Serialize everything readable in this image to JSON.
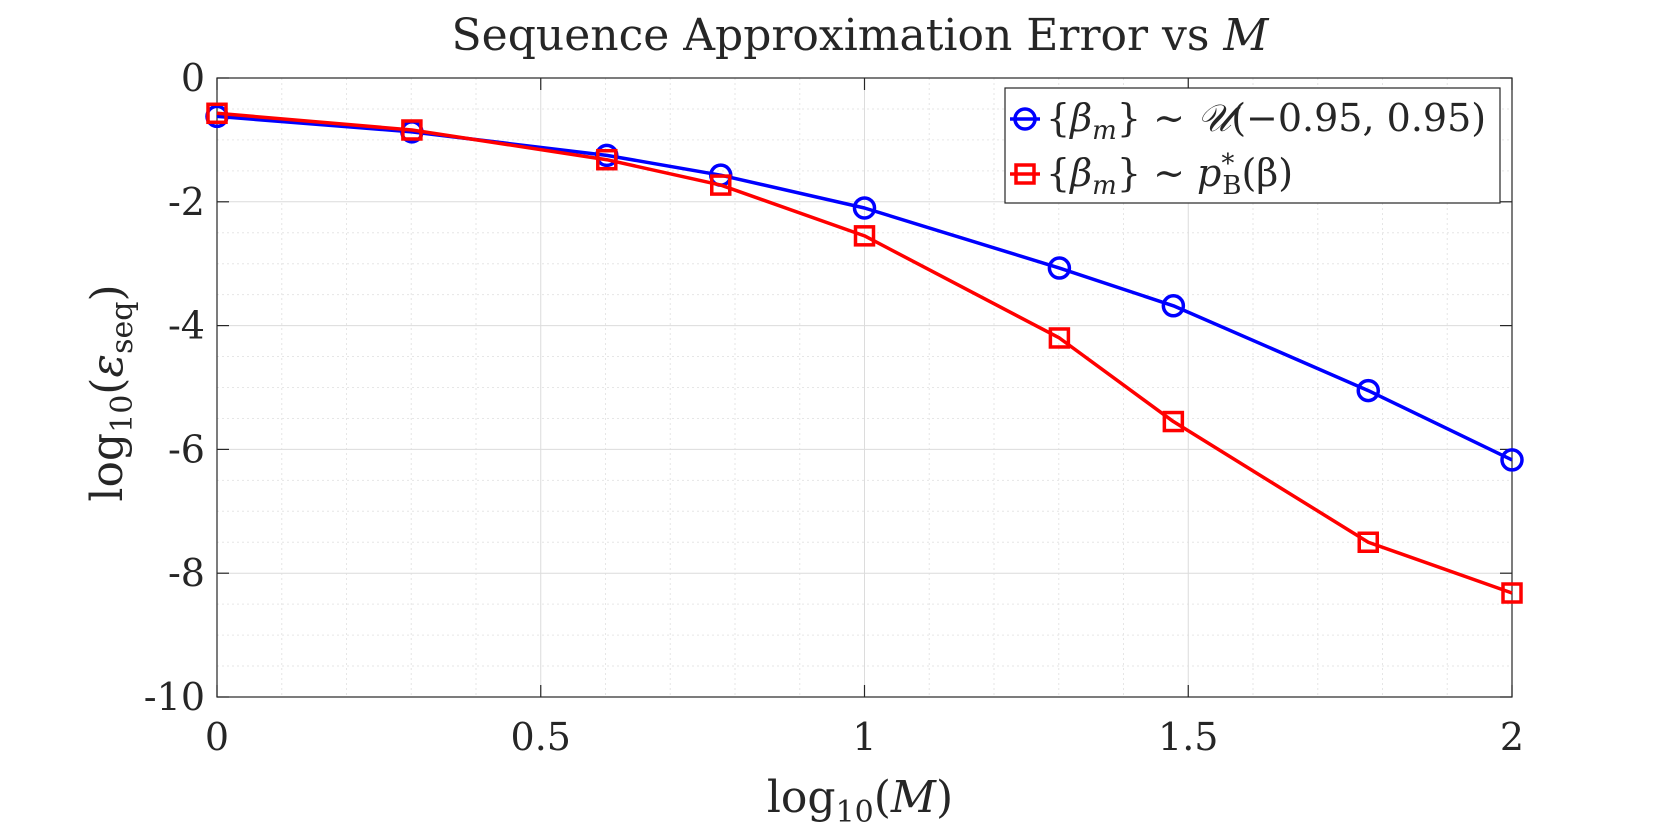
{
  "chart_data": {
    "type": "line",
    "title": "Sequence Approximation Error vs M",
    "title_parts": {
      "text": "Sequence Approximation Error vs ",
      "var": "M"
    },
    "xlabel": "log10(M)",
    "xlabel_parts": {
      "func": "log",
      "sub": "10",
      "open": "(",
      "var": "M",
      "close": ")"
    },
    "ylabel": "log10(εseq)",
    "ylabel_parts": {
      "func": "log",
      "sub": "10",
      "open": "(",
      "var": "ε",
      "varsub": "seq",
      "close": ")"
    },
    "xlim": [
      0,
      2
    ],
    "ylim": [
      -10,
      0
    ],
    "xticks": [
      0,
      0.5,
      1,
      1.5,
      2
    ],
    "xtick_labels": [
      "0",
      "0.5",
      "1",
      "1.5",
      "2"
    ],
    "yticks": [
      0,
      -2,
      -4,
      -6,
      -8,
      -10
    ],
    "ytick_labels": [
      "0",
      "-2",
      "-4",
      "-6",
      "-8",
      "-10"
    ],
    "grid": true,
    "minor_grid": true,
    "legend_position": "top-right",
    "x": [
      0,
      0.301,
      0.602,
      0.778,
      1.0,
      1.301,
      1.477,
      1.778,
      2.0
    ],
    "series": [
      {
        "name": "{βm} ~ U(−0.95, 0.95)",
        "label_parts": {
          "open": "{",
          "beta": "β",
          "sub": "m",
          "close": "}",
          "tilde": " ∼ ",
          "dist": "𝒰",
          "args": "(−0.95, 0.95)"
        },
        "color": "#0000ff",
        "marker": "circle",
        "values": [
          -0.62,
          -0.87,
          -1.25,
          -1.57,
          -2.1,
          -3.07,
          -3.68,
          -5.05,
          -6.17
        ]
      },
      {
        "name": "{βm} ~ p*B(β)",
        "label_parts": {
          "open": "{",
          "beta": "β",
          "sub": "m",
          "close": "}",
          "tilde": " ∼ ",
          "dist": "p",
          "sup": "*",
          "distsub": "B",
          "args": "(β)"
        },
        "color": "#ff0000",
        "marker": "square",
        "values": [
          -0.57,
          -0.84,
          -1.32,
          -1.73,
          -2.55,
          -4.2,
          -5.55,
          -7.5,
          -8.32
        ]
      }
    ]
  }
}
